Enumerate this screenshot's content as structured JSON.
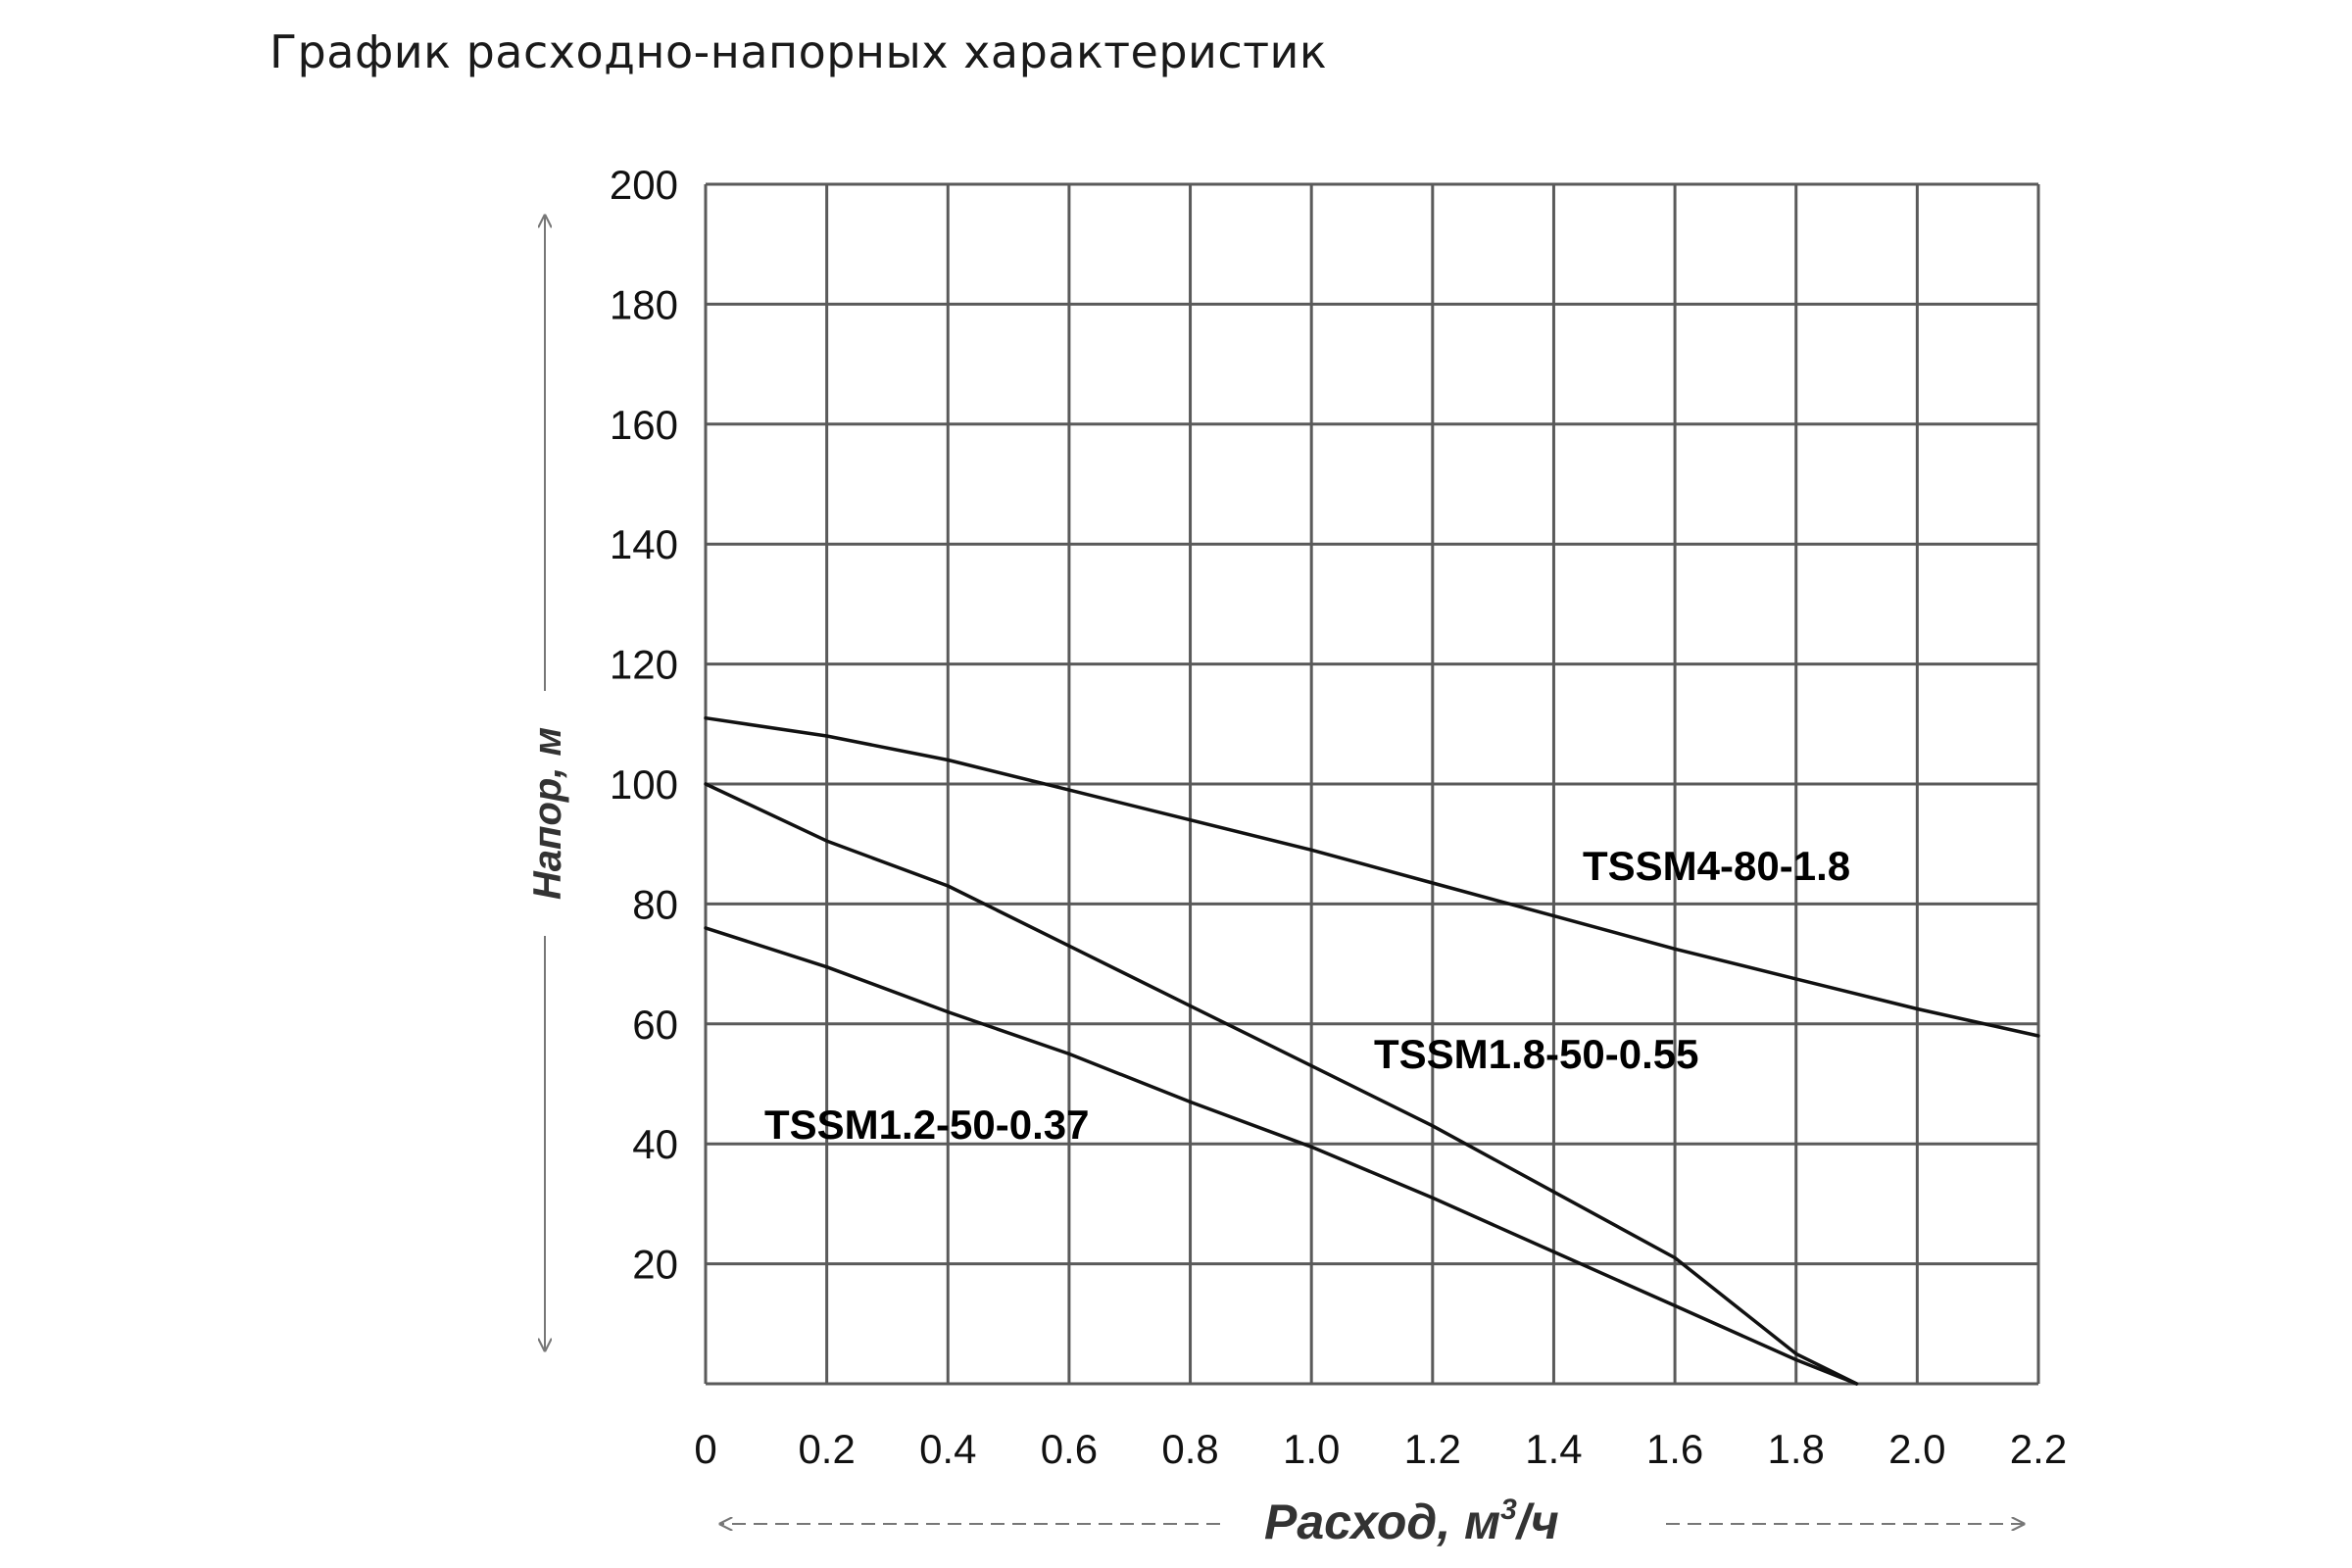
{
  "page": {
    "title": "График расходно-напорных характеристик"
  },
  "chart_data": {
    "type": "line",
    "title": "График расходно-напорных характеристик",
    "xlabel": "Расход, м³/ч",
    "xlabel_main": "Расход, м",
    "xlabel_sup": "3",
    "xlabel_tail": "/ч",
    "ylabel": "Напор, м",
    "xlim": [
      0,
      2.2
    ],
    "ylim": [
      0,
      200
    ],
    "x_ticks": [
      0,
      0.2,
      0.4,
      0.6,
      0.8,
      1.0,
      1.2,
      1.4,
      1.6,
      1.8,
      2.0,
      2.2
    ],
    "x_tick_labels": [
      "0",
      "0.2",
      "0.4",
      "0.6",
      "0.8",
      "1.0",
      "1.2",
      "1.4",
      "1.6",
      "1.8",
      "2.0",
      "2.2"
    ],
    "y_ticks": [
      20,
      40,
      60,
      80,
      100,
      120,
      140,
      160,
      180,
      200
    ],
    "y_tick_labels": [
      "20",
      "40",
      "60",
      "80",
      "100",
      "120",
      "140",
      "160",
      "180",
      "200"
    ],
    "grid": true,
    "legend": "inline labels",
    "colors": {
      "line": "#111111",
      "grid": "#5a5a5a",
      "arrow": "#777777"
    },
    "series": [
      {
        "name": "TSSM4-80-1.8",
        "x": [
          0,
          0.2,
          0.4,
          0.6,
          0.8,
          1.0,
          1.2,
          1.4,
          1.6,
          1.8,
          2.0,
          2.2
        ],
        "y": [
          111,
          108,
          104,
          99,
          94,
          89,
          83.5,
          78,
          72.5,
          67.5,
          62.5,
          58
        ]
      },
      {
        "name": "TSSM1.8-50-0.55",
        "x": [
          0,
          0.2,
          0.4,
          0.6,
          0.8,
          1.0,
          1.2,
          1.4,
          1.6,
          1.8,
          1.9
        ],
        "y": [
          100,
          90.5,
          83,
          73,
          63,
          53,
          43,
          32,
          21,
          5,
          0
        ]
      },
      {
        "name": "TSSM1.2-50-0.37",
        "x": [
          0,
          0.2,
          0.4,
          0.6,
          0.8,
          1.0,
          1.2,
          1.4,
          1.6,
          1.8,
          1.9
        ],
        "y": [
          76,
          69.5,
          62,
          55,
          47,
          39.5,
          31,
          22,
          13,
          4,
          0
        ]
      }
    ]
  }
}
